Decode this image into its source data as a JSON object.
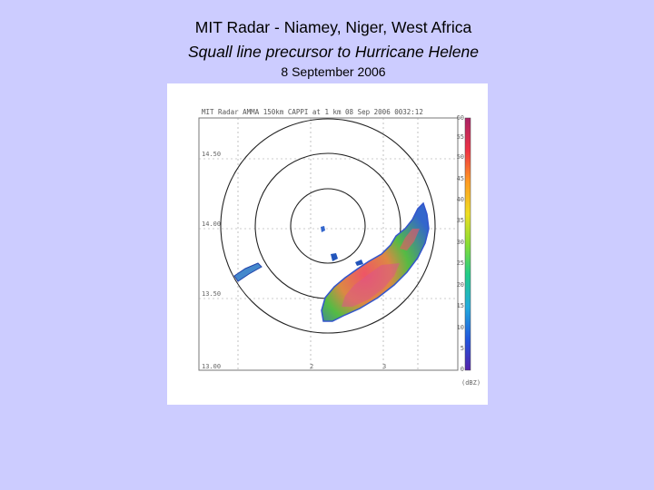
{
  "title": "MIT Radar - Niamey, Niger, West Africa",
  "subtitle": "Squall line precursor to Hurricane Helene",
  "date": "8 September 2006",
  "radar": {
    "header": "MIT Radar AMMA 150km CAPPI at 1 km 08 Sep 2006 0032:12",
    "lat_labels": [
      "14.50",
      "14.00",
      "13.50",
      "13.00"
    ],
    "lon_labels": [
      "2",
      "3"
    ],
    "colorbar_ticks": [
      "60",
      "55",
      "50",
      "45",
      "40",
      "35",
      "30",
      "25",
      "20",
      "15",
      "10",
      "5",
      "0"
    ],
    "colorbar_unit": "(dBZ)",
    "colors": {
      "background": "#ccccff",
      "panel": "#ffffff",
      "echo_low": "#3355cc",
      "echo_mid": "#33aa44",
      "echo_high": "#dd4466"
    }
  }
}
